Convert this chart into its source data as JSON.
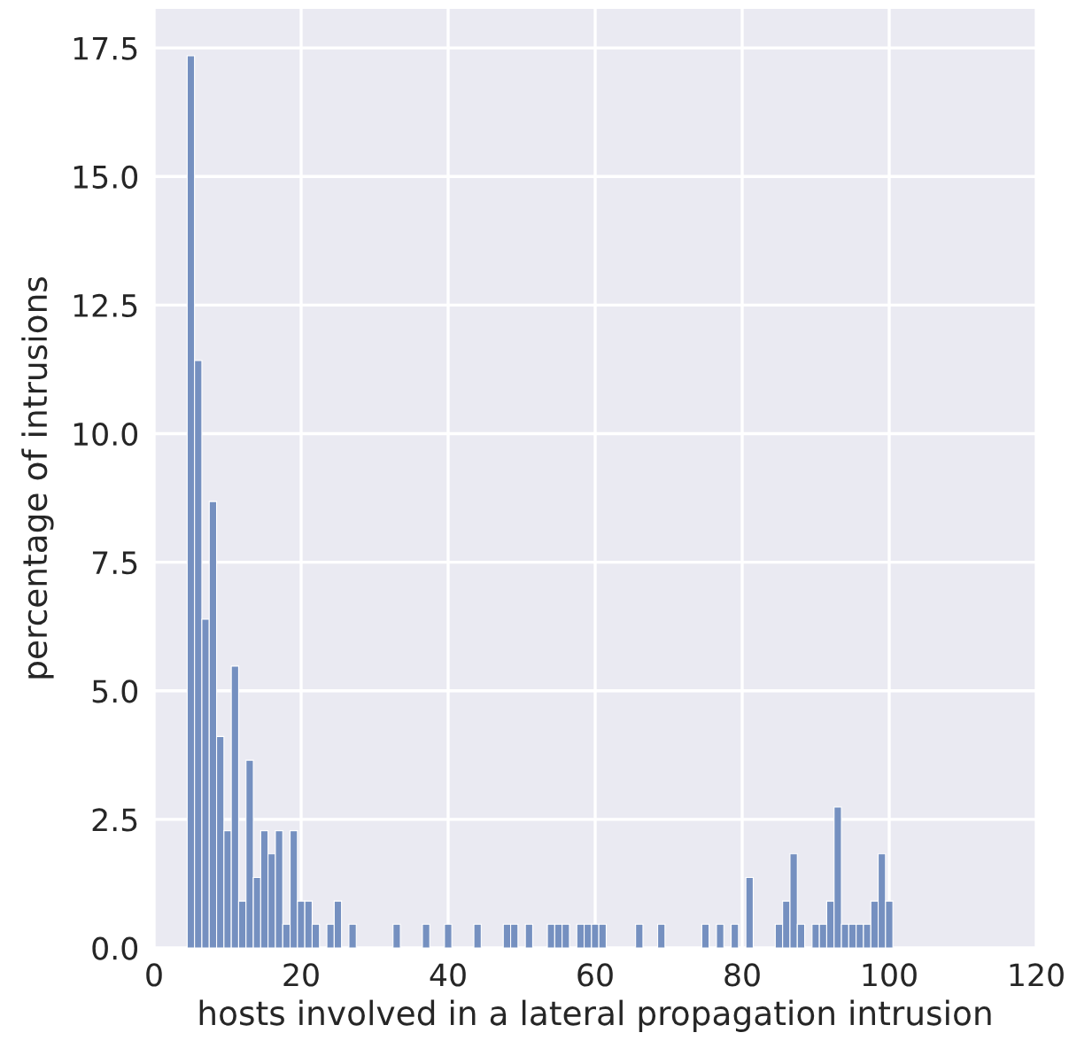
{
  "chart_data": {
    "type": "histogram",
    "xlabel": "hosts involved in a lateral propagation intrusion",
    "ylabel": "percentage of intrusions",
    "bins": [
      4.5,
      5.5,
      6.5,
      7.5,
      8.5,
      9.5,
      10.5,
      11.5,
      12.5,
      13.5,
      14.5,
      15.5,
      16.5,
      17.5,
      18.5,
      19.5,
      20.5,
      21.5,
      22.5,
      23.5,
      24.5,
      25.5,
      26.5,
      27.5,
      28.5,
      29.5,
      30.5,
      31.5,
      32.5,
      33.5,
      34.5,
      35.5,
      36.5,
      37.5,
      38.5,
      39.5,
      40.5,
      41.5,
      42.5,
      43.5,
      44.5,
      45.5,
      46.5,
      47.5,
      48.5,
      49.5,
      50.5,
      51.5,
      52.5,
      53.5,
      54.5,
      55.5,
      56.5,
      57.5,
      58.5,
      59.5,
      60.5,
      61.5,
      62.5,
      63.5,
      64.5,
      65.5,
      66.5,
      67.5,
      68.5,
      69.5,
      70.5,
      71.5,
      72.5,
      73.5,
      74.5,
      75.5,
      76.5,
      77.5,
      78.5,
      79.5,
      80.5,
      81.5,
      82.5,
      83.5,
      84.5,
      85.5,
      86.5,
      87.5,
      88.5,
      89.5,
      90.5,
      91.5,
      92.5,
      93.5,
      94.5,
      95.5,
      96.5,
      97.5,
      98.5,
      99.5,
      100.5
    ],
    "values": [
      17.35,
      11.42,
      6.39,
      8.68,
      4.11,
      2.28,
      5.48,
      0.91,
      3.65,
      1.37,
      2.28,
      1.83,
      2.28,
      0.46,
      2.28,
      0.91,
      0.91,
      0.46,
      0,
      0.46,
      0.91,
      0,
      0.46,
      0,
      0,
      0,
      0,
      0,
      0.46,
      0,
      0,
      0,
      0.46,
      0,
      0,
      0.46,
      0,
      0,
      0,
      0.46,
      0,
      0,
      0,
      0.46,
      0.46,
      0,
      0.46,
      0,
      0,
      0.46,
      0.46,
      0.46,
      0,
      0.46,
      0.46,
      0.46,
      0.46,
      0,
      0,
      0,
      0,
      0.46,
      0,
      0,
      0.46,
      0,
      0,
      0,
      0,
      0,
      0.46,
      0,
      0.46,
      0,
      0.46,
      0,
      1.37,
      0,
      0,
      0,
      0.46,
      0.91,
      1.83,
      0.46,
      0,
      0.46,
      0.46,
      0.91,
      2.74,
      0.46,
      0.46,
      0.46,
      0.46,
      0.91,
      1.83,
      0.91
    ],
    "color": "#7590c0",
    "xlim": [
      0,
      120
    ],
    "xticks": [
      0,
      20,
      40,
      60,
      80,
      100,
      120
    ],
    "ylim": [
      0,
      18.26
    ],
    "yticks": [
      {
        "value": 0,
        "label": "0.0"
      },
      2.5,
      {
        "value": 5,
        "label": "5.0"
      },
      7.5,
      {
        "value": 10,
        "label": "10.0"
      },
      12.5,
      {
        "value": 15,
        "label": "15.0"
      },
      17.5
    ],
    "grid": true
  }
}
